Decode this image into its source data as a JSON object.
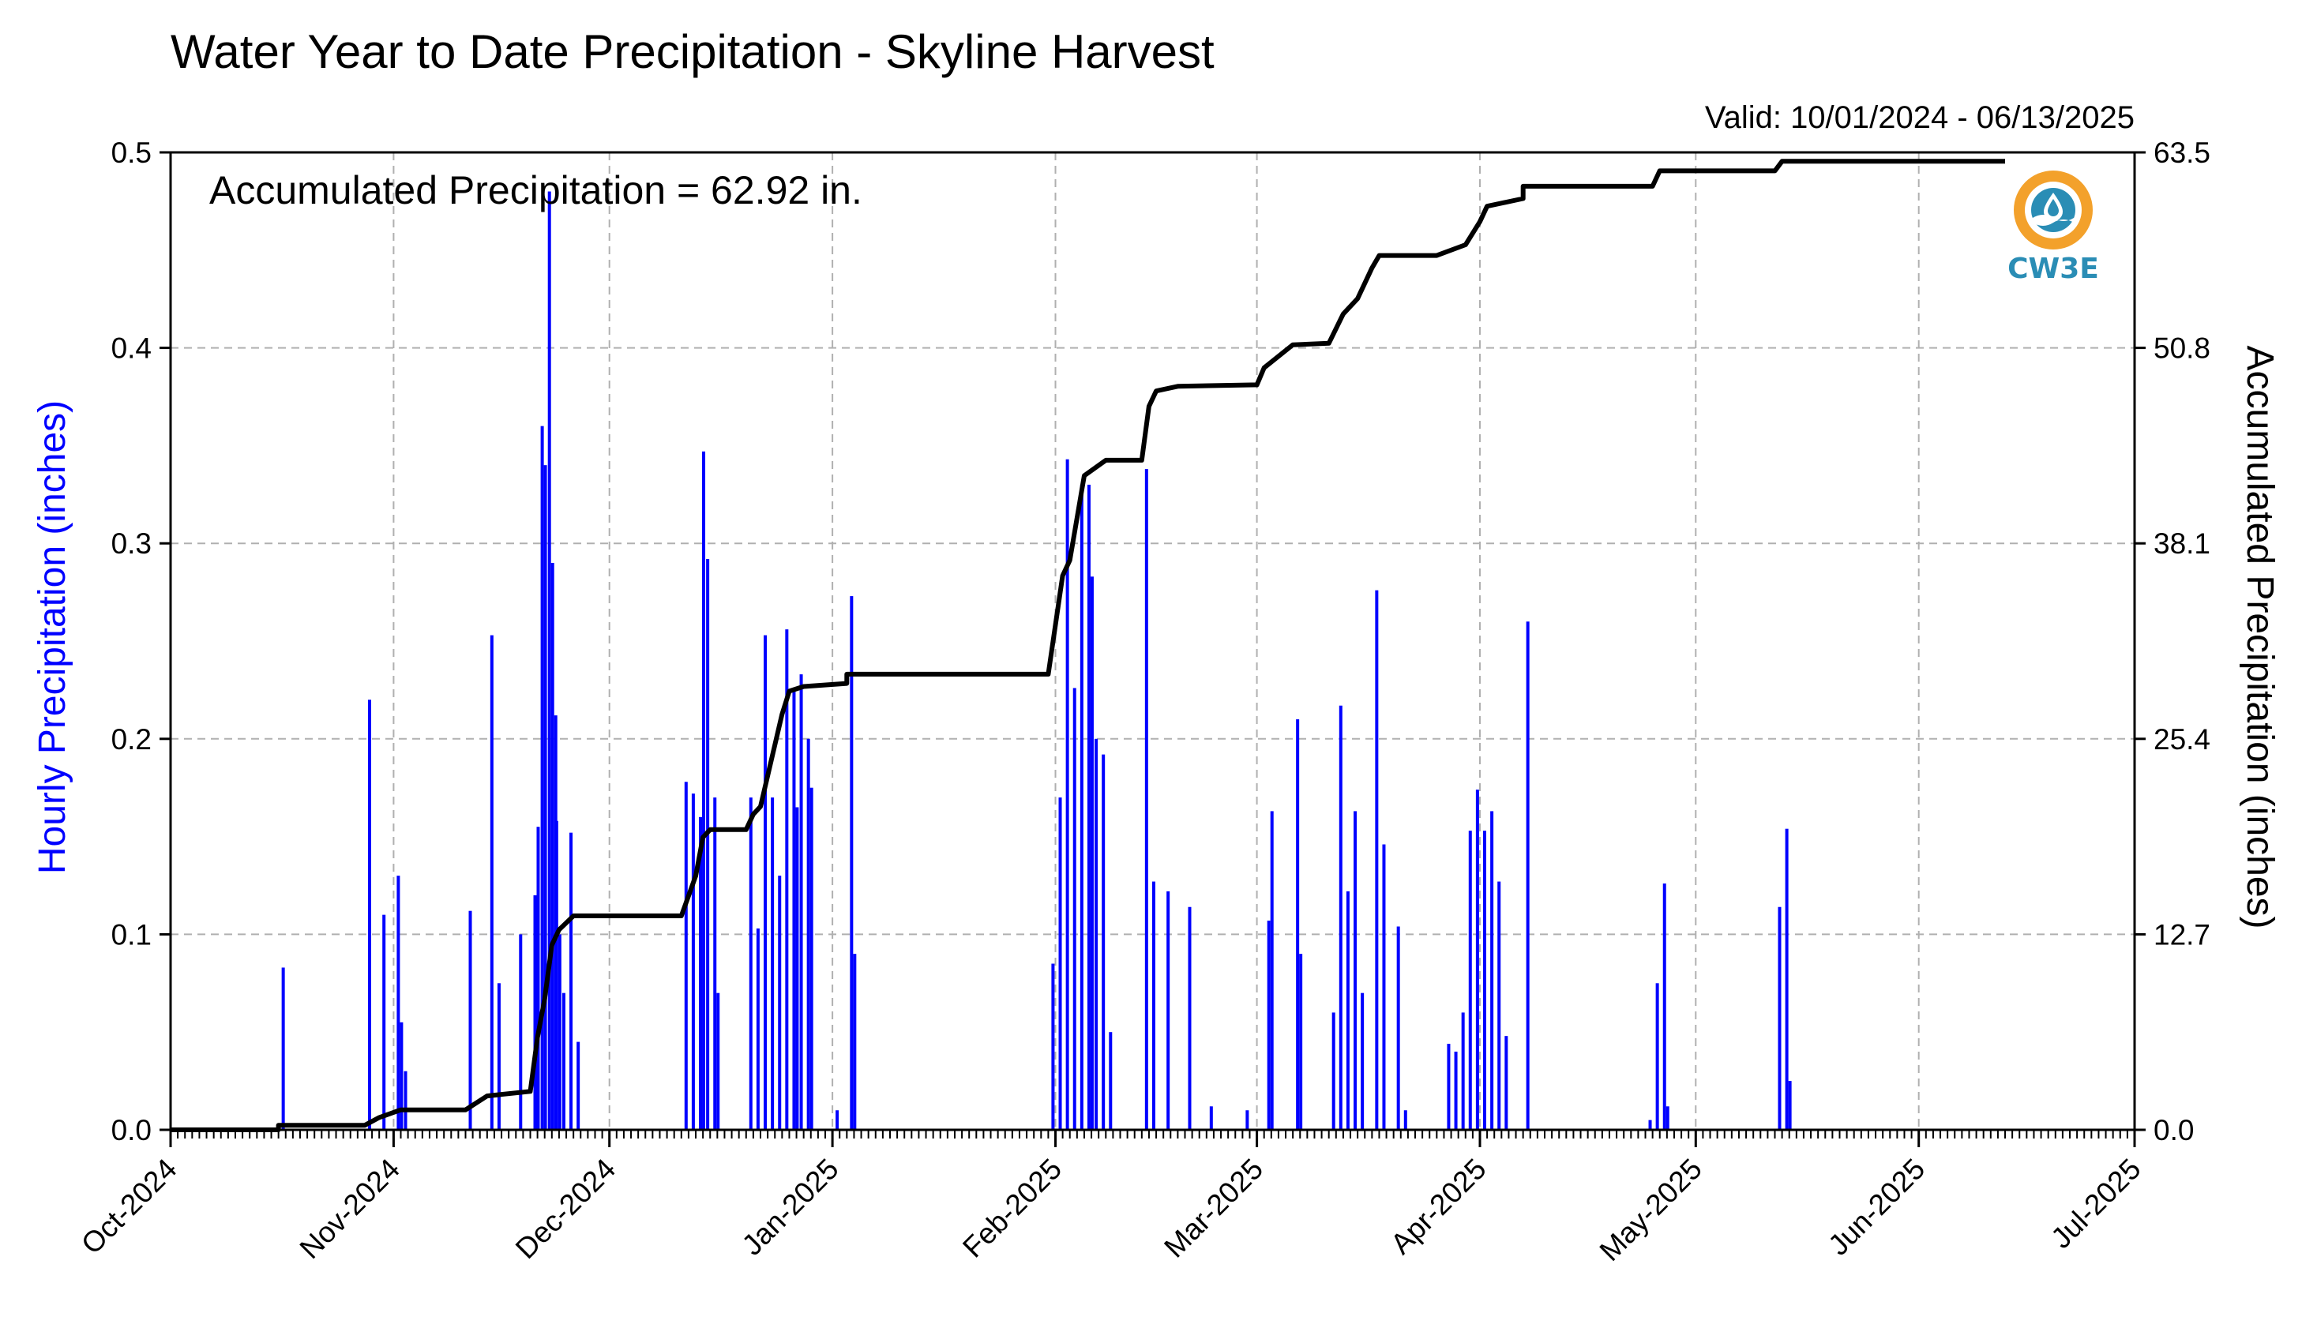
{
  "chart_data": {
    "type": "bar",
    "title": "Water Year to Date Precipitation - Skyline Harvest",
    "valid_range": "Valid: 10/01/2024 - 06/13/2025",
    "annotation": "Accumulated Precipitation = 62.92 in.",
    "ylabel_left": "Hourly Precipitation (inches)",
    "ylabel_right": "Accumulated Precipitation (inches)",
    "ylim_left": [
      0,
      0.5
    ],
    "ylim_right": [
      0,
      63.5
    ],
    "xlim": [
      "2024-10-01",
      "2025-07-01"
    ],
    "y_ticks_left": [
      "0.0",
      "0.1",
      "0.2",
      "0.3",
      "0.4",
      "0.5"
    ],
    "y_ticks_right": [
      "0.0",
      "12.7",
      "25.4",
      "38.1",
      "50.8",
      "63.5"
    ],
    "x_ticks": [
      "Oct-2024",
      "Nov-2024",
      "Dec-2024",
      "Jan-2025",
      "Feb-2025",
      "Mar-2025",
      "Apr-2025",
      "May-2025",
      "Jun-2025",
      "Jul-2025"
    ],
    "grid": true,
    "colors": {
      "hourly": "#0000ff",
      "accumulated": "#000000",
      "grid": "#b0b0b0",
      "logo": "#2a8db5",
      "logo_ring": "#f3a12b"
    },
    "series": [
      {
        "name": "Hourly Precipitation",
        "kind": "bar",
        "points": [
          [
            "2024-10-16",
            0.083
          ],
          [
            "2024-10-28",
            0.22
          ],
          [
            "2024-10-30",
            0.11
          ],
          [
            "2024-11-01",
            0.13
          ],
          [
            "2024-11-01",
            0.055
          ],
          [
            "2024-11-02",
            0.03
          ],
          [
            "2024-11-11",
            0.112
          ],
          [
            "2024-11-14",
            0.253
          ],
          [
            "2024-11-15",
            0.075
          ],
          [
            "2024-11-18",
            0.1
          ],
          [
            "2024-11-20",
            0.12
          ],
          [
            "2024-11-20",
            0.155
          ],
          [
            "2024-11-21",
            0.36
          ],
          [
            "2024-11-21",
            0.34
          ],
          [
            "2024-11-22",
            0.48
          ],
          [
            "2024-11-22",
            0.29
          ],
          [
            "2024-11-22",
            0.212
          ],
          [
            "2024-11-23",
            0.158
          ],
          [
            "2024-11-23",
            0.1
          ],
          [
            "2024-11-24",
            0.07
          ],
          [
            "2024-11-25",
            0.152
          ],
          [
            "2024-11-26",
            0.045
          ],
          [
            "2024-12-11",
            0.178
          ],
          [
            "2024-12-12",
            0.172
          ],
          [
            "2024-12-13",
            0.16
          ],
          [
            "2024-12-13",
            0.347
          ],
          [
            "2024-12-14",
            0.292
          ],
          [
            "2024-12-15",
            0.17
          ],
          [
            "2024-12-15",
            0.07
          ],
          [
            "2024-12-20",
            0.17
          ],
          [
            "2024-12-21",
            0.103
          ],
          [
            "2024-12-22",
            0.253
          ],
          [
            "2024-12-23",
            0.17
          ],
          [
            "2024-12-24",
            0.13
          ],
          [
            "2024-12-25",
            0.256
          ],
          [
            "2024-12-26",
            0.225
          ],
          [
            "2024-12-26",
            0.165
          ],
          [
            "2024-12-27",
            0.233
          ],
          [
            "2024-12-28",
            0.2
          ],
          [
            "2024-12-28",
            0.175
          ],
          [
            "2025-01-01",
            0.01
          ],
          [
            "2025-01-03",
            0.273
          ],
          [
            "2025-01-03",
            0.09
          ],
          [
            "2025-01-31",
            0.085
          ],
          [
            "2025-02-01",
            0.17
          ],
          [
            "2025-02-02",
            0.343
          ],
          [
            "2025-02-03",
            0.226
          ],
          [
            "2025-02-04",
            0.33
          ],
          [
            "2025-02-05",
            0.33
          ],
          [
            "2025-02-05",
            0.283
          ],
          [
            "2025-02-06",
            0.2
          ],
          [
            "2025-02-07",
            0.192
          ],
          [
            "2025-02-08",
            0.05
          ],
          [
            "2025-02-13",
            0.338
          ],
          [
            "2025-02-14",
            0.127
          ],
          [
            "2025-02-16",
            0.122
          ],
          [
            "2025-02-19",
            0.114
          ],
          [
            "2025-02-22",
            0.012
          ],
          [
            "2025-02-27",
            0.01
          ],
          [
            "2025-03-02",
            0.107
          ],
          [
            "2025-03-02",
            0.163
          ],
          [
            "2025-03-06",
            0.21
          ],
          [
            "2025-03-06",
            0.09
          ],
          [
            "2025-03-11",
            0.06
          ],
          [
            "2025-03-12",
            0.217
          ],
          [
            "2025-03-13",
            0.122
          ],
          [
            "2025-03-14",
            0.163
          ],
          [
            "2025-03-15",
            0.07
          ],
          [
            "2025-03-17",
            0.276
          ],
          [
            "2025-03-18",
            0.146
          ],
          [
            "2025-03-20",
            0.104
          ],
          [
            "2025-03-21",
            0.01
          ],
          [
            "2025-03-27",
            0.044
          ],
          [
            "2025-03-28",
            0.04
          ],
          [
            "2025-03-29",
            0.06
          ],
          [
            "2025-03-30",
            0.153
          ],
          [
            "2025-03-31",
            0.174
          ],
          [
            "2025-04-01",
            0.153
          ],
          [
            "2025-04-02",
            0.163
          ],
          [
            "2025-04-03",
            0.127
          ],
          [
            "2025-04-04",
            0.048
          ],
          [
            "2025-04-07",
            0.26
          ],
          [
            "2025-04-24",
            0.005
          ],
          [
            "2025-04-25",
            0.075
          ],
          [
            "2025-04-26",
            0.126
          ],
          [
            "2025-04-26",
            0.012
          ],
          [
            "2025-05-12",
            0.114
          ],
          [
            "2025-05-13",
            0.154
          ],
          [
            "2025-05-13",
            0.025
          ]
        ]
      },
      {
        "name": "Accumulated Precipitation",
        "kind": "line",
        "points": [
          [
            "2024-10-01",
            0.0
          ],
          [
            "2024-10-16",
            0.0
          ],
          [
            "2024-10-16",
            0.3
          ],
          [
            "2024-10-28",
            0.3
          ],
          [
            "2024-10-30",
            0.8
          ],
          [
            "2024-11-02",
            1.3
          ],
          [
            "2024-11-11",
            1.3
          ],
          [
            "2024-11-14",
            2.2
          ],
          [
            "2024-11-20",
            2.5
          ],
          [
            "2024-11-21",
            6.0
          ],
          [
            "2024-11-22",
            8.5
          ],
          [
            "2024-11-23",
            12.0
          ],
          [
            "2024-11-24",
            13.0
          ],
          [
            "2024-11-26",
            13.9
          ],
          [
            "2024-12-11",
            13.9
          ],
          [
            "2024-12-13",
            16.5
          ],
          [
            "2024-12-14",
            19.0
          ],
          [
            "2024-12-15",
            19.5
          ],
          [
            "2024-12-20",
            19.5
          ],
          [
            "2024-12-21",
            20.5
          ],
          [
            "2024-12-22",
            21.0
          ],
          [
            "2024-12-23",
            23.0
          ],
          [
            "2024-12-25",
            27.0
          ],
          [
            "2024-12-26",
            28.5
          ],
          [
            "2024-12-28",
            28.8
          ],
          [
            "2025-01-03",
            29.0
          ],
          [
            "2025-01-03",
            29.6
          ],
          [
            "2025-01-31",
            29.6
          ],
          [
            "2025-02-02",
            36.0
          ],
          [
            "2025-02-03",
            37.0
          ],
          [
            "2025-02-05",
            42.5
          ],
          [
            "2025-02-08",
            43.5
          ],
          [
            "2025-02-13",
            43.5
          ],
          [
            "2025-02-14",
            47.0
          ],
          [
            "2025-02-15",
            48.0
          ],
          [
            "2025-02-18",
            48.3
          ],
          [
            "2025-03-01",
            48.4
          ],
          [
            "2025-03-02",
            49.5
          ],
          [
            "2025-03-06",
            51.0
          ],
          [
            "2025-03-11",
            51.1
          ],
          [
            "2025-03-13",
            53.0
          ],
          [
            "2025-03-15",
            54.0
          ],
          [
            "2025-03-17",
            56.0
          ],
          [
            "2025-03-18",
            56.8
          ],
          [
            "2025-03-26",
            56.8
          ],
          [
            "2025-03-30",
            57.5
          ],
          [
            "2025-04-01",
            59.0
          ],
          [
            "2025-04-02",
            60.0
          ],
          [
            "2025-04-07",
            60.5
          ],
          [
            "2025-04-07",
            61.3
          ],
          [
            "2025-04-25",
            61.3
          ],
          [
            "2025-04-26",
            62.3
          ],
          [
            "2025-05-12",
            62.3
          ],
          [
            "2025-05-13",
            62.92
          ],
          [
            "2025-06-13",
            62.92
          ]
        ]
      }
    ]
  },
  "logo": {
    "text": "CW3E",
    "icon": "cw3e-water-drop-logo"
  }
}
